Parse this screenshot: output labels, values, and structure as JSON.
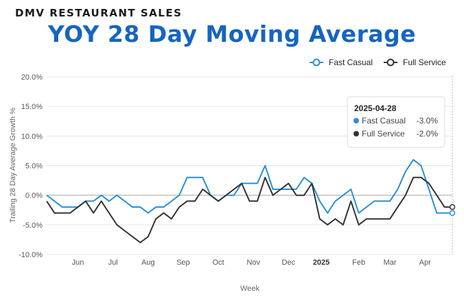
{
  "header": {
    "kicker": "DMV RESTAURANT SALES",
    "title": "YOY 28 Day Moving Average"
  },
  "colors": {
    "fast_casual": "#2a8fd6",
    "full_service": "#333333",
    "title": "#1565c0"
  },
  "chart_data": {
    "type": "line",
    "title": "YOY 28 Day Moving Average",
    "xlabel": "Week",
    "ylabel": "Trailing 28 Day Average Growth %",
    "ylim": [
      -10,
      20
    ],
    "yticks": [
      -10,
      -5,
      0,
      5,
      10,
      15,
      20
    ],
    "ytick_labels": [
      "-10.0%",
      "-5.0%",
      "0.0%",
      "5.0%",
      "10.0%",
      "15.0%",
      "20.0%"
    ],
    "x_count": 53,
    "month_ticks": [
      {
        "label": "Jun",
        "index": 4,
        "bold": false
      },
      {
        "label": "Jul",
        "index": 8.5,
        "bold": false
      },
      {
        "label": "Aug",
        "index": 13,
        "bold": false
      },
      {
        "label": "Sep",
        "index": 17.5,
        "bold": false
      },
      {
        "label": "Oct",
        "index": 22,
        "bold": false
      },
      {
        "label": "Nov",
        "index": 26.5,
        "bold": false
      },
      {
        "label": "Dec",
        "index": 31,
        "bold": false
      },
      {
        "label": "2025",
        "index": 35.2,
        "bold": true
      },
      {
        "label": "Feb",
        "index": 40,
        "bold": false
      },
      {
        "label": "Mar",
        "index": 44,
        "bold": false
      },
      {
        "label": "Apr",
        "index": 48.5,
        "bold": false
      }
    ],
    "series": [
      {
        "name": "Fast Casual",
        "values": [
          0,
          -1,
          -2,
          -2,
          -2,
          -1,
          -1,
          0,
          -1,
          0,
          -1,
          -2,
          -2,
          -3,
          -2,
          -2,
          -1,
          0,
          3,
          3,
          3,
          0,
          -1,
          0,
          0,
          2,
          2,
          2,
          5,
          1,
          1,
          1,
          1,
          3,
          2,
          -1,
          -3,
          -1,
          0,
          1,
          -3,
          -2,
          -1,
          -1,
          -1,
          1,
          4,
          6,
          5,
          1,
          -3,
          -3,
          -3
        ]
      },
      {
        "name": "Full Service",
        "values": [
          -1,
          -3,
          -3,
          -3,
          -2,
          -1,
          -3,
          -1,
          -3,
          -5,
          -6,
          -7,
          -8,
          -7,
          -4,
          -3,
          -4,
          -2,
          -1,
          -1,
          1,
          0,
          -1,
          0,
          1,
          2,
          -1,
          -1,
          3,
          0,
          1,
          2,
          0,
          0,
          2,
          -4,
          -5,
          -4,
          -5,
          -1,
          -5,
          -4,
          -4,
          -4,
          -4,
          -2,
          0,
          3,
          3,
          2,
          0,
          -2,
          -2
        ]
      }
    ],
    "tooltip": {
      "date": "2025-04-28",
      "rows": [
        {
          "name": "Fast Casual",
          "value": "-3.0%"
        },
        {
          "name": "Full Service",
          "value": "-2.0%"
        }
      ]
    }
  }
}
